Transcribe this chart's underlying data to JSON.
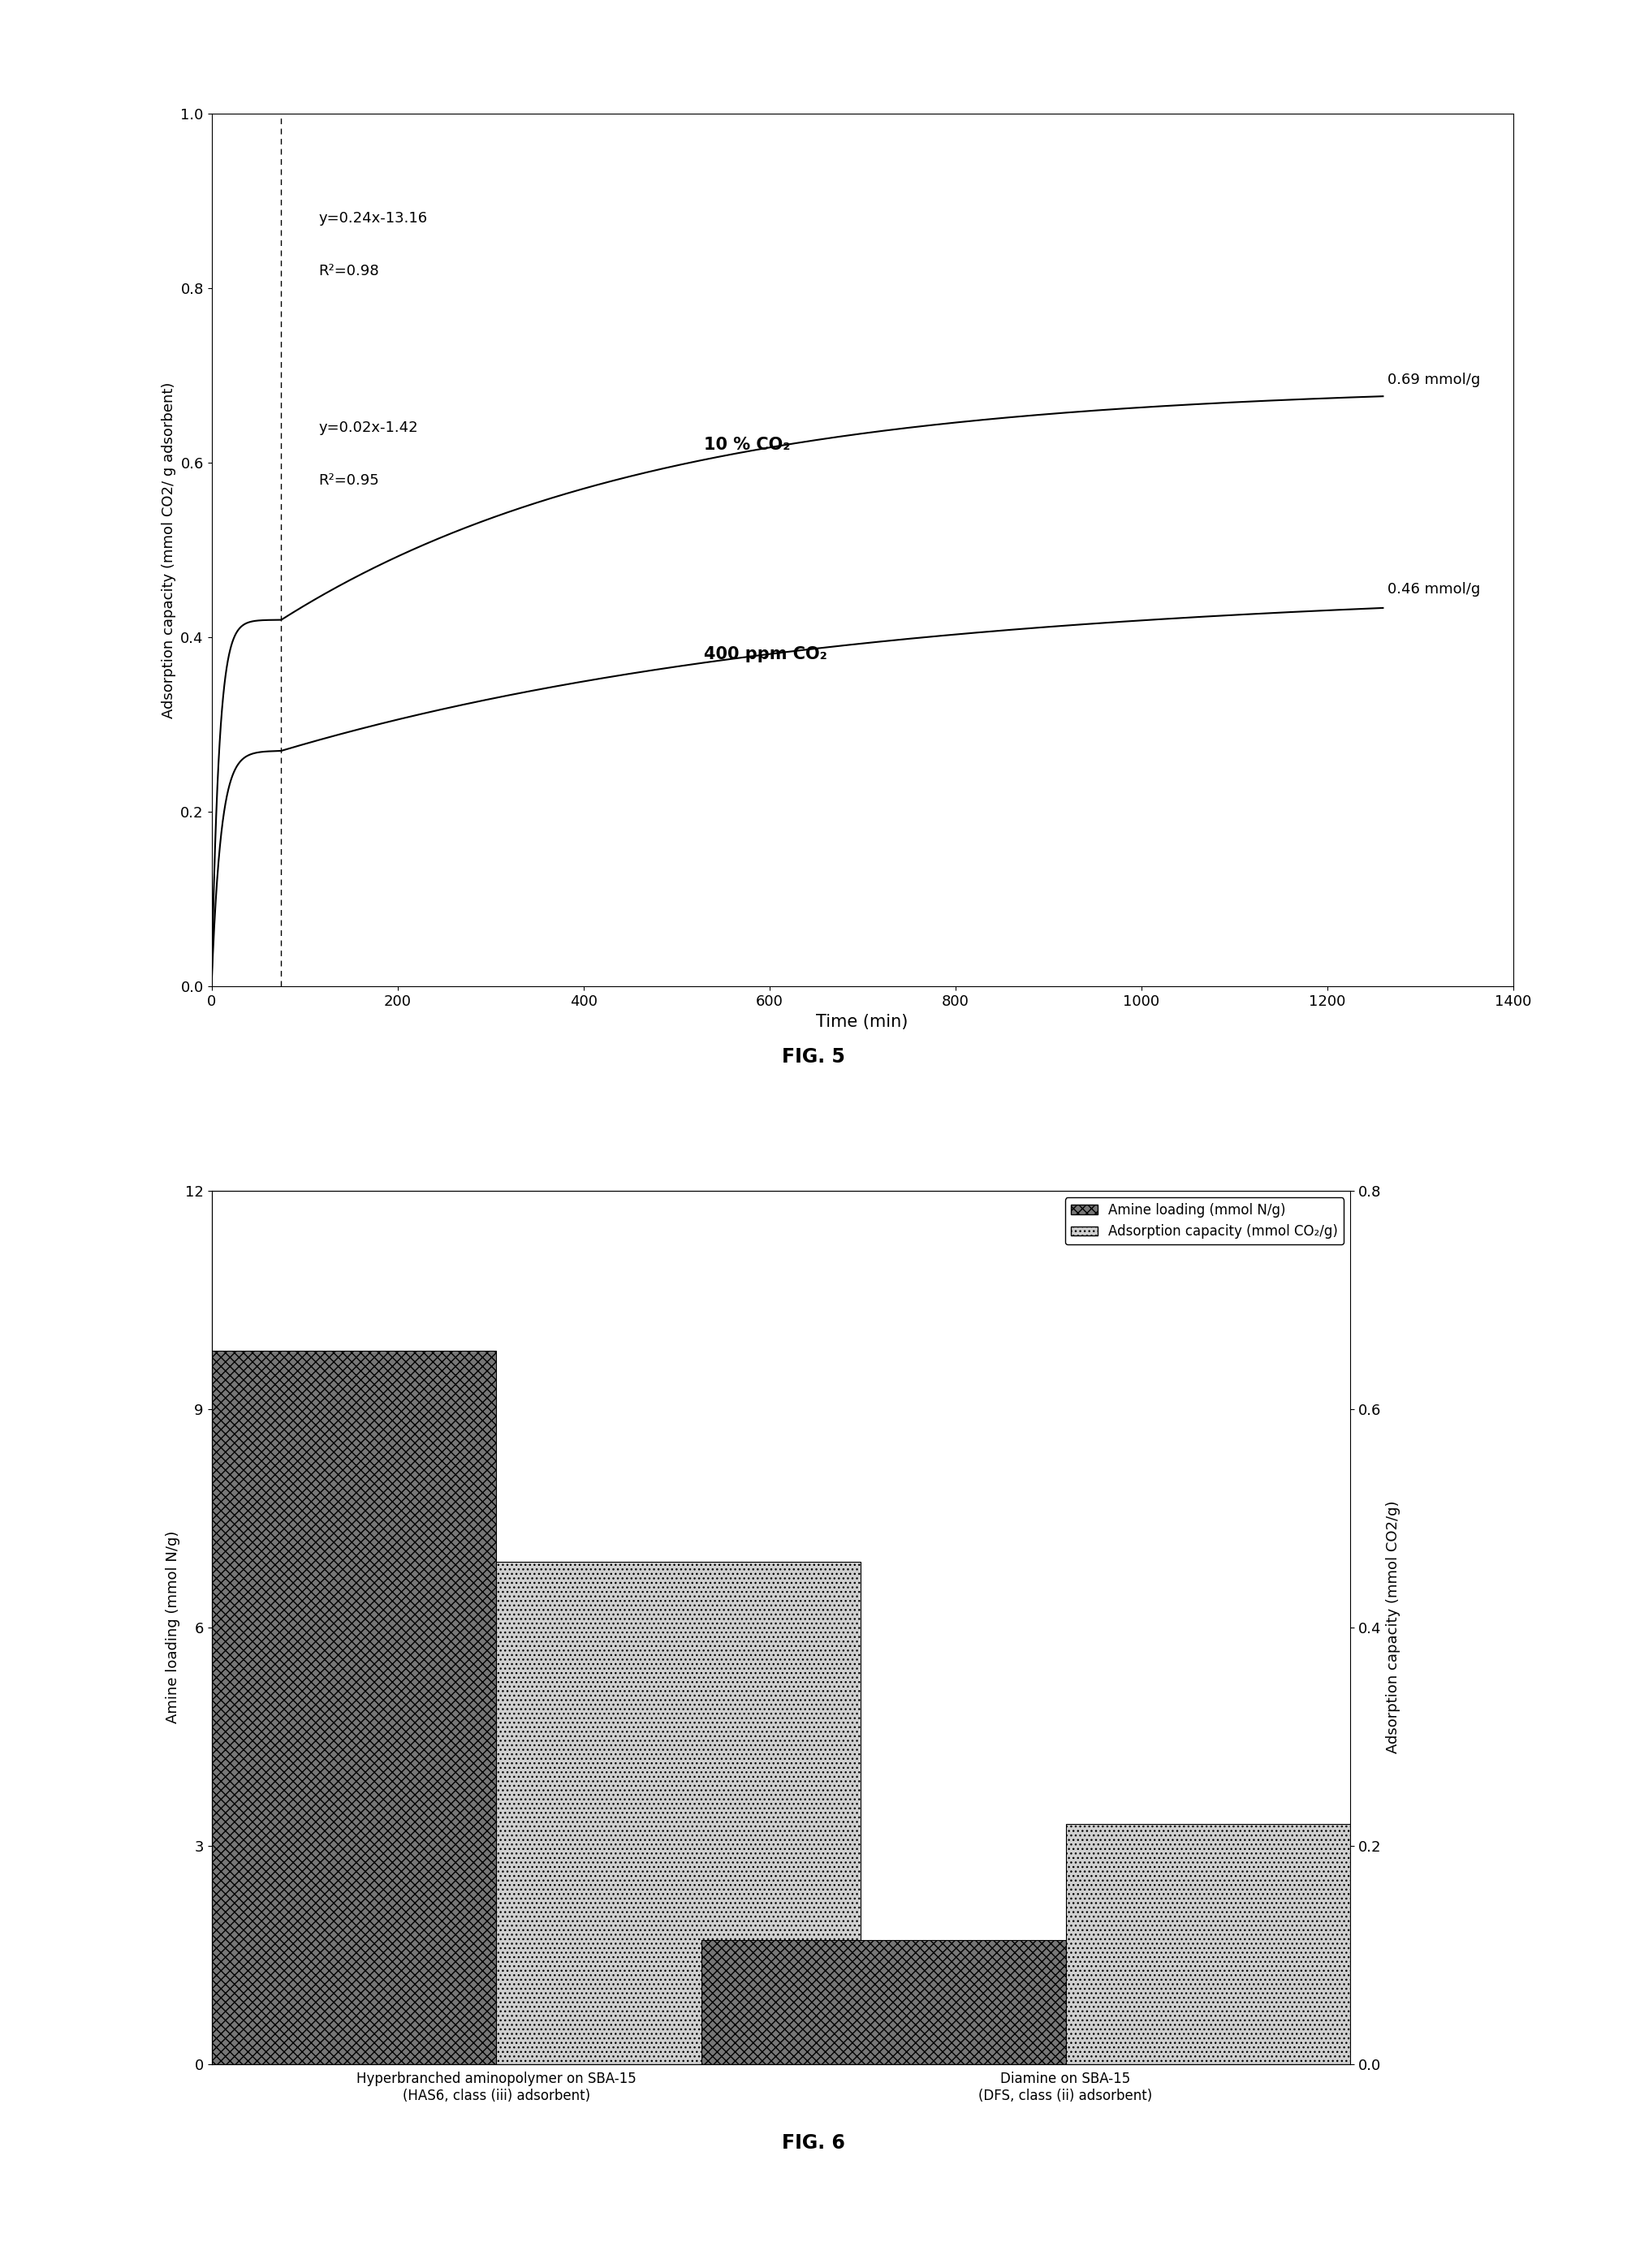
{
  "fig5": {
    "title": "FIG. 5",
    "xlabel": "Time (min)",
    "ylabel": "Adsorption capacity (mmol CO2/ g adsorbent)",
    "xlim": [
      0,
      1400
    ],
    "ylim": [
      0,
      1.0
    ],
    "xticks": [
      0,
      200,
      400,
      600,
      800,
      1000,
      1200,
      1400
    ],
    "yticks": [
      0,
      0.2,
      0.4,
      0.6,
      0.8,
      1.0
    ],
    "line1_label": "10 % CO₂",
    "line1_end_label": "0.69 mmol/g",
    "line2_label": "400 ppm CO₂",
    "line2_end_label": "0.46 mmol/g",
    "eq1": "y=0.24x-13.16",
    "r2_1": "R²=0.98",
    "eq2": "y=0.02x-1.42",
    "r2_2": "R²=0.95",
    "dashed_x": 75,
    "line_color": "#000000",
    "curve10_fast_tau": 8,
    "curve10_fast_max": 0.42,
    "curve10_slow_tau": 400,
    "curve10_slow_add": 0.27,
    "curve400_fast_tau": 10,
    "curve400_fast_max": 0.27,
    "curve400_slow_tau": 600,
    "curve400_slow_add": 0.19
  },
  "fig6": {
    "title": "FIG. 6",
    "ylabel_left": "Amine loading (mmol N/g)",
    "ylabel_right": "Adsorption capacity (mmol CO2/g)",
    "ylim_left": [
      0,
      12
    ],
    "ylim_right": [
      0,
      0.8
    ],
    "yticks_left": [
      0,
      3,
      6,
      9,
      12
    ],
    "yticks_right": [
      0,
      0.2,
      0.4,
      0.6,
      0.8
    ],
    "cat1": "Hyperbranched aminopolymer on SBA-15\n(HAS6, class (iii) adsorbent)",
    "cat2": "Diamine on SBA-15\n(DFS, class (ii) adsorbent)",
    "amine_loading_1": 9.8,
    "amine_loading_2": 1.7,
    "adsorption_1": 0.46,
    "adsorption_2": 0.22,
    "legend_amine": "Amine loading (mmol N/g)",
    "legend_adsorption": "Adsorption capacity (mmol CO₂/g)",
    "bar_color_amine": "#777777",
    "bar_color_adsorption": "#d0d0d0",
    "bar_width": 0.32
  }
}
